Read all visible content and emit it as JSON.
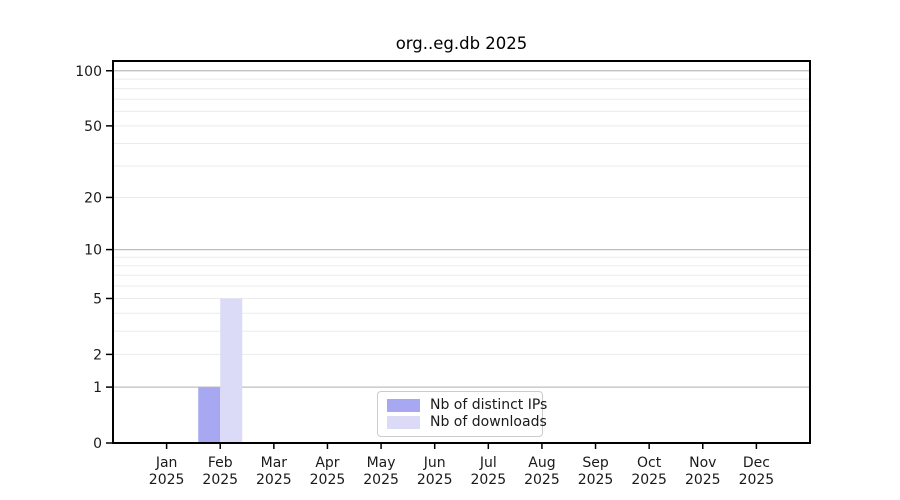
{
  "title": "org..eg.db 2025",
  "colors": {
    "distinct_ips": "#a8a8f2",
    "downloads": "#dbdbf8",
    "major_gridline": "#bdbdbd",
    "minor_gridline": "#ebebeb",
    "axis_frame": "#000000",
    "tick_label": "#1a1a1a",
    "legend_border": "#cccccc",
    "background": "#ffffff"
  },
  "legend": {
    "items": [
      {
        "label": "Nb of distinct IPs",
        "color": "#a8a8f2"
      },
      {
        "label": "Nb of downloads",
        "color": "#dbdbf8"
      }
    ],
    "position": "lower center"
  },
  "chart_data": {
    "type": "bar",
    "title": "org..eg.db 2025",
    "categories": [
      "Jan 2025",
      "Feb 2025",
      "Mar 2025",
      "Apr 2025",
      "May 2025",
      "Jun 2025",
      "Jul 2025",
      "Aug 2025",
      "Sep 2025",
      "Oct 2025",
      "Nov 2025",
      "Dec 2025"
    ],
    "x_tick_months": [
      "Jan",
      "Feb",
      "Mar",
      "Apr",
      "May",
      "Jun",
      "Jul",
      "Aug",
      "Sep",
      "Oct",
      "Nov",
      "Dec"
    ],
    "x_tick_year": "2025",
    "series": [
      {
        "name": "Nb of distinct IPs",
        "color": "#a8a8f2",
        "values": [
          0,
          1,
          0,
          0,
          0,
          0,
          0,
          0,
          0,
          0,
          0,
          0
        ]
      },
      {
        "name": "Nb of downloads",
        "color": "#dbdbf8",
        "values": [
          0,
          5,
          0,
          0,
          0,
          0,
          0,
          0,
          0,
          0,
          0,
          0
        ]
      }
    ],
    "y_scale": "log10(1+y)",
    "y_tick_labels": [
      0,
      1,
      2,
      5,
      10,
      20,
      50,
      100
    ],
    "major_gridlines": [
      1,
      10,
      100
    ],
    "minor_gridlines": [
      2,
      3,
      4,
      5,
      6,
      7,
      8,
      9,
      20,
      30,
      40,
      50,
      60,
      70,
      80,
      90
    ],
    "ylim": [
      0,
      113
    ],
    "xlabel": "",
    "ylabel": "",
    "grid": true
  }
}
